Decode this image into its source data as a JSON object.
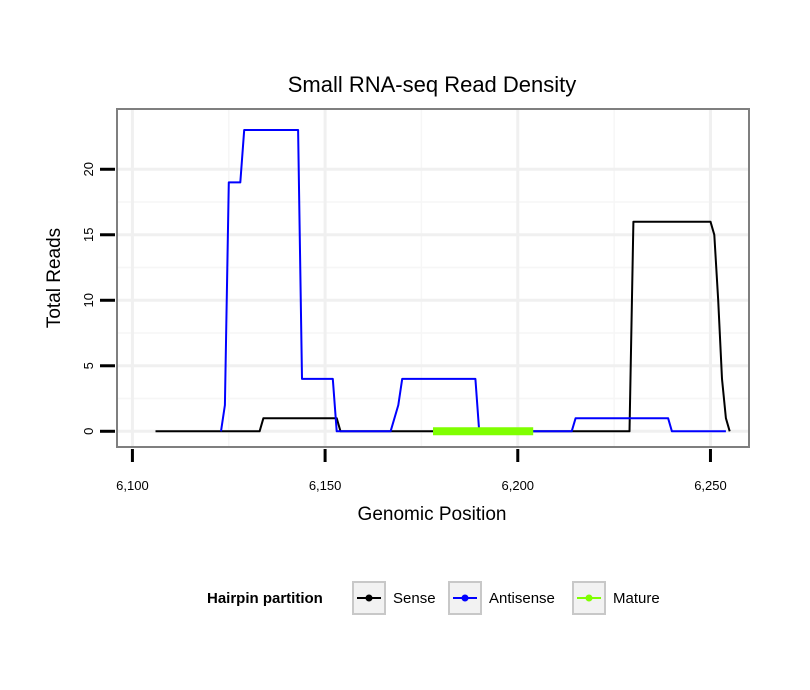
{
  "chart_data": {
    "type": "line",
    "title": "Small RNA-seq Read Density",
    "xlabel": "Genomic Position",
    "ylabel": "Total Reads",
    "xlim": [
      6096,
      6260
    ],
    "ylim": [
      -1.2,
      24.6
    ],
    "xticks": [
      {
        "value": 6100,
        "label": "6,100"
      },
      {
        "value": 6150,
        "label": "6,150"
      },
      {
        "value": 6200,
        "label": "6,200"
      },
      {
        "value": 6250,
        "label": "6,250"
      }
    ],
    "yticks": [
      {
        "value": 0,
        "label": "0"
      },
      {
        "value": 5,
        "label": "5"
      },
      {
        "value": 10,
        "label": "10"
      },
      {
        "value": 15,
        "label": "15"
      },
      {
        "value": 20,
        "label": "20"
      }
    ],
    "legend": {
      "title": "Hairpin partition",
      "position": "bottom",
      "entries": [
        {
          "label": "Sense",
          "color": "#000000"
        },
        {
          "label": "Antisense",
          "color": "#0000ff"
        },
        {
          "label": "Mature",
          "color": "#7fff00"
        }
      ]
    },
    "series": [
      {
        "name": "Sense",
        "color": "#000000",
        "x": [
          6106,
          6133,
          6134,
          6153,
          6154,
          6229,
          6230,
          6250,
          6251,
          6252,
          6253,
          6254,
          6255
        ],
        "y": [
          0,
          0,
          1,
          1,
          0,
          0,
          16,
          16,
          15,
          10,
          4,
          1,
          0
        ]
      },
      {
        "name": "Antisense",
        "color": "#0000ff",
        "x": [
          6123,
          6124,
          6125,
          6128,
          6129,
          6143,
          6144,
          6152,
          6153,
          6167,
          6169,
          6170,
          6189,
          6190,
          6214,
          6215,
          6239,
          6240,
          6254
        ],
        "y": [
          0,
          2,
          19,
          19,
          23,
          23,
          4,
          4,
          0,
          0,
          2,
          4,
          4,
          0,
          0,
          1,
          1,
          0,
          0
        ]
      },
      {
        "name": "Mature",
        "color": "#7fff00",
        "x": [
          6178,
          6204
        ],
        "y": [
          0,
          0
        ]
      }
    ]
  }
}
